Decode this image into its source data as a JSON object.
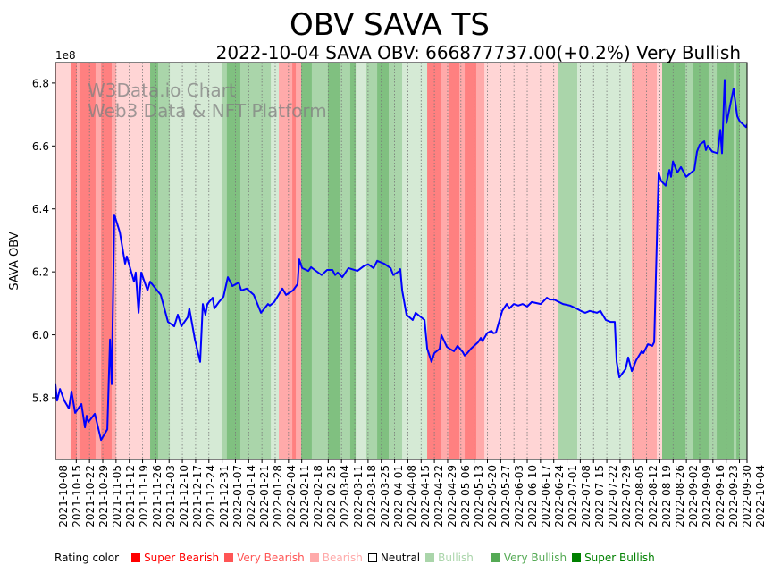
{
  "chart_data": {
    "type": "line",
    "title": "OBV SAVA TS",
    "subtitle": "2022-10-04 SAVA OBV: 666877737.00(+0.2%) Very Bullish",
    "ylabel": "SAVA OBV",
    "xlabel": "",
    "y_offset_label": "1e8",
    "ylim": [
      5.604,
      6.865
    ],
    "y_ticks": [
      5.8,
      6.0,
      6.2,
      6.4,
      6.6,
      6.8
    ],
    "y_tick_labels": [
      "5.8",
      "6.0",
      "6.2",
      "6.4",
      "6.6",
      "6.8"
    ],
    "x_start": "2021-10-04",
    "x_end": "2022-10-04",
    "x_range_days": [
      0,
      365
    ],
    "x_tick_labels": [
      "2021-10-08",
      "2021-10-15",
      "2021-10-22",
      "2021-10-29",
      "2021-11-05",
      "2021-11-12",
      "2021-11-19",
      "2021-11-26",
      "2021-12-03",
      "2021-12-10",
      "2021-12-17",
      "2021-12-24",
      "2021-12-31",
      "2022-01-07",
      "2022-01-14",
      "2022-01-21",
      "2022-01-28",
      "2022-02-04",
      "2022-02-11",
      "2022-02-18",
      "2022-02-25",
      "2022-03-04",
      "2022-03-11",
      "2022-03-18",
      "2022-03-25",
      "2022-04-01",
      "2022-04-08",
      "2022-04-15",
      "2022-04-22",
      "2022-04-29",
      "2022-05-06",
      "2022-05-13",
      "2022-05-20",
      "2022-05-27",
      "2022-06-03",
      "2022-06-10",
      "2022-06-17",
      "2022-06-24",
      "2022-07-01",
      "2022-07-08",
      "2022-07-15",
      "2022-07-22",
      "2022-07-29",
      "2022-08-05",
      "2022-08-12",
      "2022-08-19",
      "2022-08-26",
      "2022-09-02",
      "2022-09-09",
      "2022-09-16",
      "2022-09-23",
      "2022-09-30",
      "2022-10-04"
    ],
    "watermark": [
      "W3Data.io Chart",
      "Web3 Data & NFT Platform"
    ],
    "series": [
      {
        "name": "OBV",
        "color": "#0000ff",
        "unit": "1e8",
        "points": [
          [
            0,
            5.843
          ],
          [
            0.9,
            5.791
          ],
          [
            2.4,
            5.828
          ],
          [
            4.7,
            5.791
          ],
          [
            7.1,
            5.766
          ],
          [
            8.5,
            5.82
          ],
          [
            10.4,
            5.752
          ],
          [
            13.7,
            5.78
          ],
          [
            15.6,
            5.706
          ],
          [
            16.5,
            5.743
          ],
          [
            17.4,
            5.723
          ],
          [
            20.8,
            5.749
          ],
          [
            24.1,
            5.666
          ],
          [
            27.4,
            5.7
          ],
          [
            28.8,
            5.985
          ],
          [
            29.7,
            5.843
          ],
          [
            31.1,
            6.382
          ],
          [
            34,
            6.326
          ],
          [
            36.8,
            6.226
          ],
          [
            37.7,
            6.249
          ],
          [
            41.5,
            6.169
          ],
          [
            42.4,
            6.198
          ],
          [
            43.9,
            6.07
          ],
          [
            45.3,
            6.198
          ],
          [
            48.6,
            6.141
          ],
          [
            50,
            6.169
          ],
          [
            55.6,
            6.127
          ],
          [
            59.4,
            6.041
          ],
          [
            62.7,
            6.027
          ],
          [
            64.6,
            6.064
          ],
          [
            66.5,
            6.027
          ],
          [
            69.8,
            6.056
          ],
          [
            70.7,
            6.084
          ],
          [
            73.6,
            5.985
          ],
          [
            76.4,
            5.914
          ],
          [
            77.8,
            6.098
          ],
          [
            79.2,
            6.064
          ],
          [
            80.2,
            6.098
          ],
          [
            83,
            6.118
          ],
          [
            83.9,
            6.084
          ],
          [
            86.3,
            6.104
          ],
          [
            88.7,
            6.121
          ],
          [
            91,
            6.183
          ],
          [
            93.4,
            6.155
          ],
          [
            96.7,
            6.166
          ],
          [
            98.1,
            6.141
          ],
          [
            100.9,
            6.147
          ],
          [
            104.7,
            6.127
          ],
          [
            108.5,
            6.07
          ],
          [
            112.2,
            6.098
          ],
          [
            113.2,
            6.093
          ],
          [
            115.5,
            6.104
          ],
          [
            119.8,
            6.147
          ],
          [
            121.7,
            6.127
          ],
          [
            125.4,
            6.141
          ],
          [
            127.8,
            6.161
          ],
          [
            128.7,
            6.24
          ],
          [
            130.2,
            6.212
          ],
          [
            133.5,
            6.203
          ],
          [
            134.9,
            6.215
          ],
          [
            136.8,
            6.206
          ],
          [
            140.5,
            6.19
          ],
          [
            143.4,
            6.206
          ],
          [
            146.2,
            6.206
          ],
          [
            147.6,
            6.19
          ],
          [
            149,
            6.198
          ],
          [
            151.4,
            6.183
          ],
          [
            154.7,
            6.212
          ],
          [
            159.4,
            6.203
          ],
          [
            162.7,
            6.218
          ],
          [
            165.1,
            6.224
          ],
          [
            167.9,
            6.212
          ],
          [
            169.8,
            6.235
          ],
          [
            173.5,
            6.226
          ],
          [
            176.9,
            6.212
          ],
          [
            178.3,
            6.19
          ],
          [
            181.6,
            6.203
          ],
          [
            182,
            6.209
          ],
          [
            183,
            6.141
          ],
          [
            185.3,
            6.064
          ],
          [
            188.6,
            6.047
          ],
          [
            190.1,
            6.07
          ],
          [
            194.8,
            6.047
          ],
          [
            196.2,
            5.956
          ],
          [
            198.5,
            5.914
          ],
          [
            200,
            5.942
          ],
          [
            202.8,
            5.956
          ],
          [
            203.7,
            5.999
          ],
          [
            206.6,
            5.962
          ],
          [
            208,
            5.956
          ],
          [
            210.3,
            5.948
          ],
          [
            212.2,
            5.965
          ],
          [
            215,
            5.945
          ],
          [
            216,
            5.934
          ],
          [
            217.4,
            5.942
          ],
          [
            219.3,
            5.956
          ],
          [
            223.1,
            5.977
          ],
          [
            224.5,
            5.99
          ],
          [
            225.4,
            5.98
          ],
          [
            227.8,
            6.005
          ],
          [
            230.1,
            6.013
          ],
          [
            231.1,
            6.005
          ],
          [
            232.5,
            6.007
          ],
          [
            235.8,
            6.076
          ],
          [
            238.2,
            6.098
          ],
          [
            239.6,
            6.084
          ],
          [
            241.9,
            6.098
          ],
          [
            244.3,
            6.093
          ],
          [
            246.6,
            6.098
          ],
          [
            249,
            6.09
          ],
          [
            251.4,
            6.104
          ],
          [
            256.1,
            6.098
          ],
          [
            259.4,
            6.118
          ],
          [
            260.8,
            6.112
          ],
          [
            263.2,
            6.112
          ],
          [
            267.9,
            6.098
          ],
          [
            271.6,
            6.093
          ],
          [
            274.9,
            6.084
          ],
          [
            277.3,
            6.076
          ],
          [
            279.6,
            6.07
          ],
          [
            282,
            6.076
          ],
          [
            285.8,
            6.07
          ],
          [
            287.6,
            6.076
          ],
          [
            290.5,
            6.047
          ],
          [
            292.9,
            6.041
          ],
          [
            295.2,
            6.041
          ],
          [
            296.2,
            5.914
          ],
          [
            297.6,
            5.865
          ],
          [
            300.9,
            5.891
          ],
          [
            302.3,
            5.928
          ],
          [
            304.2,
            5.885
          ],
          [
            306.5,
            5.919
          ],
          [
            309.4,
            5.948
          ],
          [
            310.3,
            5.942
          ],
          [
            312.7,
            5.97
          ],
          [
            315,
            5.965
          ],
          [
            316,
            5.977
          ],
          [
            317.4,
            6.3
          ],
          [
            318.3,
            6.516
          ],
          [
            319.7,
            6.489
          ],
          [
            322.1,
            6.474
          ],
          [
            324,
            6.524
          ],
          [
            324.9,
            6.502
          ],
          [
            325.9,
            6.551
          ],
          [
            328.2,
            6.516
          ],
          [
            330.1,
            6.533
          ],
          [
            332.9,
            6.502
          ],
          [
            337.2,
            6.524
          ],
          [
            338.6,
            6.582
          ],
          [
            340,
            6.604
          ],
          [
            342.4,
            6.615
          ],
          [
            343.3,
            6.587
          ],
          [
            344.3,
            6.601
          ],
          [
            346.6,
            6.582
          ],
          [
            349.5,
            6.577
          ],
          [
            350.9,
            6.651
          ],
          [
            351.8,
            6.577
          ],
          [
            353.2,
            6.81
          ],
          [
            354.2,
            6.673
          ],
          [
            357.9,
            6.782
          ],
          [
            359.8,
            6.695
          ],
          [
            361.2,
            6.678
          ],
          [
            364.5,
            6.66
          ],
          [
            365,
            6.669
          ]
        ]
      }
    ],
    "rating_bands": [
      {
        "from": 0,
        "to": 8,
        "rating": "Bearish"
      },
      {
        "from": 8,
        "to": 11.3,
        "rating": "Super Bearish"
      },
      {
        "from": 11.3,
        "to": 12.7,
        "rating": "Very Bearish"
      },
      {
        "from": 12.7,
        "to": 21.2,
        "rating": "Super Bearish"
      },
      {
        "from": 21.2,
        "to": 24.1,
        "rating": "Very Bearish"
      },
      {
        "from": 24.1,
        "to": 29.7,
        "rating": "Super Bearish"
      },
      {
        "from": 29.7,
        "to": 32.1,
        "rating": "Very Bearish"
      },
      {
        "from": 32.1,
        "to": 50,
        "rating": "Bearish"
      },
      {
        "from": 50,
        "to": 54.2,
        "rating": "Super Bullish"
      },
      {
        "from": 54.2,
        "to": 60.4,
        "rating": "Very Bullish"
      },
      {
        "from": 60.4,
        "to": 87.7,
        "rating": "Bullish"
      },
      {
        "from": 87.7,
        "to": 90.5,
        "rating": "Very Bullish"
      },
      {
        "from": 90.5,
        "to": 97.6,
        "rating": "Super Bullish"
      },
      {
        "from": 97.6,
        "to": 113.7,
        "rating": "Very Bullish"
      },
      {
        "from": 113.7,
        "to": 117.9,
        "rating": "Bullish"
      },
      {
        "from": 117.9,
        "to": 125,
        "rating": "Very Bearish"
      },
      {
        "from": 125,
        "to": 126.9,
        "rating": "Super Bearish"
      },
      {
        "from": 126.9,
        "to": 129.7,
        "rating": "Very Bearish"
      },
      {
        "from": 129.7,
        "to": 135.3,
        "rating": "Super Bullish"
      },
      {
        "from": 135.3,
        "to": 143.8,
        "rating": "Very Bullish"
      },
      {
        "from": 143.8,
        "to": 150,
        "rating": "Super Bullish"
      },
      {
        "from": 150,
        "to": 155.6,
        "rating": "Very Bullish"
      },
      {
        "from": 155.6,
        "to": 158.5,
        "rating": "Super Bullish"
      },
      {
        "from": 158.5,
        "to": 164.1,
        "rating": "Bullish"
      },
      {
        "from": 164.1,
        "to": 169.8,
        "rating": "Very Bullish"
      },
      {
        "from": 169.8,
        "to": 175.9,
        "rating": "Super Bullish"
      },
      {
        "from": 175.9,
        "to": 183,
        "rating": "Very Bullish"
      },
      {
        "from": 183,
        "to": 196.2,
        "rating": "Bullish"
      },
      {
        "from": 196.2,
        "to": 203.3,
        "rating": "Super Bearish"
      },
      {
        "from": 203.3,
        "to": 207.5,
        "rating": "Very Bearish"
      },
      {
        "from": 207.5,
        "to": 213.2,
        "rating": "Super Bearish"
      },
      {
        "from": 213.2,
        "to": 216,
        "rating": "Very Bearish"
      },
      {
        "from": 216,
        "to": 222.1,
        "rating": "Super Bearish"
      },
      {
        "from": 222.1,
        "to": 226.4,
        "rating": "Very Bearish"
      },
      {
        "from": 226.4,
        "to": 265.5,
        "rating": "Bearish"
      },
      {
        "from": 265.5,
        "to": 275.4,
        "rating": "Very Bullish"
      },
      {
        "from": 275.4,
        "to": 304.2,
        "rating": "Bullish"
      },
      {
        "from": 304.2,
        "to": 317.4,
        "rating": "Very Bearish"
      },
      {
        "from": 317.4,
        "to": 320.2,
        "rating": "Bearish"
      },
      {
        "from": 320.2,
        "to": 332.5,
        "rating": "Super Bullish"
      },
      {
        "from": 332.5,
        "to": 336.3,
        "rating": "Very Bullish"
      },
      {
        "from": 336.3,
        "to": 344.7,
        "rating": "Super Bullish"
      },
      {
        "from": 344.7,
        "to": 349,
        "rating": "Very Bullish"
      },
      {
        "from": 349,
        "to": 357.9,
        "rating": "Super Bullish"
      },
      {
        "from": 357.9,
        "to": 359.4,
        "rating": "Very Bullish"
      },
      {
        "from": 359.4,
        "to": 361.2,
        "rating": "Super Bullish"
      },
      {
        "from": 361.2,
        "to": 365,
        "rating": "Very Bullish"
      }
    ],
    "band_colors": {
      "Super Bearish": "#ff8080",
      "Very Bearish": "#ffaaaa",
      "Bearish": "#ffd5d5",
      "Bullish": "#d5ead5",
      "Very Bullish": "#aad5aa",
      "Super Bullish": "#80c080"
    }
  },
  "legend": {
    "title": "Rating color",
    "items": [
      {
        "label": "Super Bearish",
        "color": "#ff0000"
      },
      {
        "label": "Very Bearish",
        "color": "#ff5555"
      },
      {
        "label": "Bearish",
        "color": "#ffaaaa"
      },
      {
        "label": "Neutral",
        "color": "#000000",
        "hollow": true
      },
      {
        "label": "Bullish",
        "color": "#aad5aa"
      },
      {
        "label": "Very Bullish",
        "color": "#55aa55"
      },
      {
        "label": "Super Bullish",
        "color": "#008000"
      }
    ]
  }
}
